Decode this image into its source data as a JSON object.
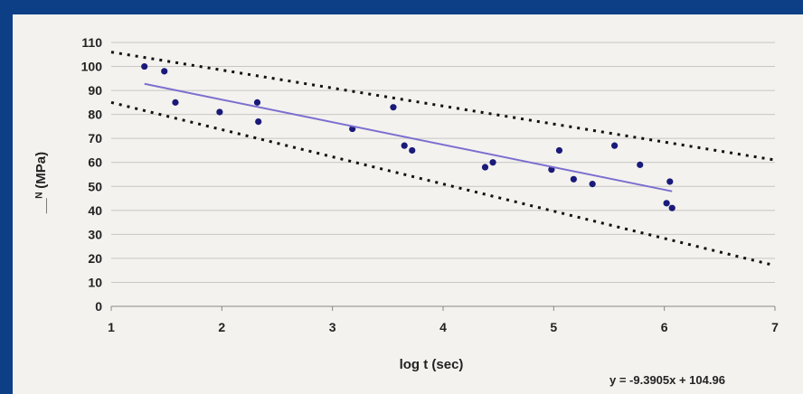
{
  "chart_data": {
    "type": "scatter",
    "title": "",
    "xlabel": "log t (sec)",
    "ylabel": "__ᴺ (MPa)",
    "xlim": [
      1,
      7
    ],
    "ylim": [
      0,
      110
    ],
    "x_ticks": [
      1,
      2,
      3,
      4,
      5,
      6,
      7
    ],
    "y_ticks": [
      0,
      10,
      20,
      30,
      40,
      50,
      60,
      70,
      80,
      90,
      100,
      110
    ],
    "grid": "horizontal",
    "series": [
      {
        "type": "scatter",
        "color": "#1a1a7a",
        "x": [
          1.3,
          1.48,
          1.58,
          1.98,
          2.32,
          2.33,
          3.18,
          3.55,
          3.65,
          3.72,
          4.38,
          4.45,
          4.98,
          5.05,
          5.18,
          5.35,
          5.55,
          5.78,
          6.02,
          6.05,
          6.07
        ],
        "y": [
          100,
          98,
          85,
          81,
          85,
          77,
          74,
          83,
          67,
          65,
          58,
          60,
          57,
          65,
          53,
          51,
          67,
          59,
          43,
          52,
          41
        ]
      },
      {
        "type": "trendline",
        "color": "#7b6fd0",
        "x": [
          1.3,
          6.07
        ],
        "y": [
          92.75,
          47.96
        ]
      },
      {
        "type": "dotted-bound",
        "color": "#111111",
        "x": [
          1,
          7
        ],
        "y": [
          106,
          61
        ]
      },
      {
        "type": "dotted-bound",
        "color": "#111111",
        "x": [
          1,
          7
        ],
        "y": [
          85,
          17
        ]
      }
    ],
    "equation": "y = -9.3905x + 104.96",
    "colors": {
      "frame": "#0d3f86",
      "panel": "#f4f2ee",
      "grid": "#c8c6c2"
    }
  }
}
